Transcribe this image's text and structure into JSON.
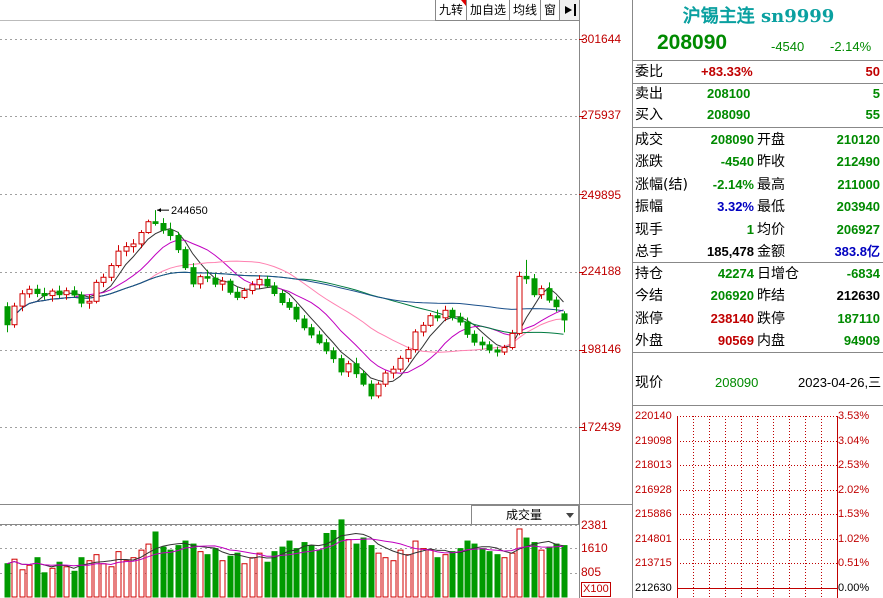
{
  "toolbar": {
    "items": [
      "九转",
      "加自选",
      "均线",
      "窗"
    ]
  },
  "price_axis": [
    "301644",
    "275937",
    "249895",
    "224188",
    "198146",
    "172439"
  ],
  "price_annotation": "244650",
  "volume": {
    "selector": "成交量",
    "axis": [
      "2381",
      "1610",
      "805"
    ],
    "unit": "X100"
  },
  "header": {
    "title": "沪锡主连 sn9999",
    "price": "208090",
    "change": "-4540",
    "change_pct": "-2.14%"
  },
  "order_book": {
    "weibi": {
      "label": "委比",
      "pct": "+83.33%",
      "diff": "50"
    },
    "sell": {
      "label": "卖出",
      "price": "208100",
      "vol": "5"
    },
    "buy": {
      "label": "买入",
      "price": "208090",
      "vol": "55"
    }
  },
  "quote": [
    {
      "l1": "成交",
      "v1": "208090",
      "c1": "green",
      "l2": "开盘",
      "v2": "210120",
      "c2": "green"
    },
    {
      "l1": "涨跌",
      "v1": "-4540",
      "c1": "green",
      "l2": "昨收",
      "v2": "212490",
      "c2": "green"
    },
    {
      "l1": "涨幅(结)",
      "v1": "-2.14%",
      "c1": "green",
      "l2": "最高",
      "v2": "211000",
      "c2": "green"
    },
    {
      "l1": "振幅",
      "v1": "3.32%",
      "c1": "blue",
      "l2": "最低",
      "v2": "203940",
      "c2": "green"
    },
    {
      "l1": "现手",
      "v1": "1",
      "c1": "green",
      "l2": "均价",
      "v2": "206927",
      "c2": "green"
    },
    {
      "l1": "总手",
      "v1": "185,478",
      "c1": "black",
      "l2": "金额",
      "v2": "383.8亿",
      "c2": "blue"
    }
  ],
  "position": [
    {
      "l1": "持仓",
      "v1": "42274",
      "c1": "green",
      "l2": "日增仓",
      "v2": "-6834",
      "c2": "green"
    },
    {
      "l1": "今结",
      "v1": "206920",
      "c1": "green",
      "l2": "昨结",
      "v2": "212630",
      "c2": "black"
    },
    {
      "l1": "涨停",
      "v1": "238140",
      "c1": "red",
      "l2": "跌停",
      "v2": "187110",
      "c2": "green"
    },
    {
      "l1": "外盘",
      "v1": "90569",
      "c1": "red",
      "l2": "内盘",
      "v2": "94909",
      "c2": "green"
    }
  ],
  "last_trade": {
    "label": "现价",
    "price": "208090",
    "datetime": "2023-04-26,三"
  },
  "mini_chart": {
    "left_labels": [
      "220140",
      "219098",
      "218013",
      "216928",
      "215886",
      "214801",
      "213715",
      "212630"
    ],
    "right_labels": [
      "3.53%",
      "3.04%",
      "2.53%",
      "2.02%",
      "1.53%",
      "1.02%",
      "0.51%",
      "0.00%"
    ]
  },
  "chart_data": {
    "type": "candlestick",
    "ohlc": [
      [
        212500,
        214000,
        204000,
        206500
      ],
      [
        206500,
        213800,
        205500,
        212700
      ],
      [
        212700,
        218000,
        211000,
        216800
      ],
      [
        216800,
        219500,
        215500,
        218300
      ],
      [
        218300,
        219800,
        215700,
        216900
      ],
      [
        216900,
        218800,
        214800,
        216200
      ],
      [
        216200,
        218500,
        214200,
        217700
      ],
      [
        217700,
        219500,
        215400,
        216500
      ],
      [
        216500,
        218900,
        214800,
        217800
      ],
      [
        217800,
        219300,
        215600,
        216400
      ],
      [
        216400,
        217500,
        212300,
        213700
      ],
      [
        213700,
        216500,
        211800,
        214300
      ],
      [
        214300,
        221500,
        213600,
        220600
      ],
      [
        220600,
        223500,
        219000,
        222300
      ],
      [
        222300,
        227000,
        221000,
        226200
      ],
      [
        226200,
        233000,
        225500,
        231000
      ],
      [
        231000,
        234000,
        229300,
        232500
      ],
      [
        232500,
        235000,
        230500,
        233400
      ],
      [
        233400,
        238000,
        232000,
        237200
      ],
      [
        237200,
        241500,
        236800,
        240800
      ],
      [
        240800,
        244650,
        239500,
        240200
      ],
      [
        240200,
        242000,
        236800,
        238000
      ],
      [
        238000,
        240500,
        234600,
        236200
      ],
      [
        236200,
        237400,
        230400,
        231500
      ],
      [
        231500,
        232500,
        224700,
        225500
      ],
      [
        225500,
        227000,
        219000,
        220100
      ],
      [
        220100,
        223200,
        218500,
        222500
      ],
      [
        222500,
        224800,
        220700,
        222000
      ],
      [
        222000,
        223500,
        219000,
        220000
      ],
      [
        220000,
        222400,
        217800,
        221000
      ],
      [
        221000,
        221800,
        216500,
        217300
      ],
      [
        217300,
        219000,
        214700,
        215600
      ],
      [
        215600,
        218800,
        215000,
        217900
      ],
      [
        217900,
        221000,
        216600,
        219800
      ],
      [
        219800,
        223000,
        218500,
        221600
      ],
      [
        221600,
        222800,
        218800,
        219400
      ],
      [
        219400,
        220700,
        216000,
        216900
      ],
      [
        216900,
        218100,
        213000,
        213900
      ],
      [
        213900,
        215300,
        211400,
        212300
      ],
      [
        212300,
        213500,
        207400,
        208400
      ],
      [
        208400,
        209700,
        204600,
        205500
      ],
      [
        205500,
        206800,
        202000,
        203100
      ],
      [
        203100,
        204500,
        199900,
        200500
      ],
      [
        200500,
        201800,
        196700,
        197800
      ],
      [
        197800,
        199000,
        193800,
        195200
      ],
      [
        195200,
        196500,
        189600,
        190800
      ],
      [
        190800,
        194500,
        189100,
        193500
      ],
      [
        193500,
        195500,
        188800,
        190200
      ],
      [
        190200,
        191400,
        186000,
        186700
      ],
      [
        186700,
        188000,
        181700,
        182800
      ],
      [
        182800,
        187600,
        182000,
        186700
      ],
      [
        186700,
        191200,
        185800,
        190400
      ],
      [
        190400,
        192800,
        188600,
        191700
      ],
      [
        191700,
        196200,
        190800,
        195300
      ],
      [
        195300,
        199200,
        194000,
        198200
      ],
      [
        198200,
        205000,
        197200,
        204100
      ],
      [
        204100,
        207400,
        202600,
        206300
      ],
      [
        206300,
        210400,
        205800,
        209500
      ],
      [
        209500,
        211500,
        207600,
        208800
      ],
      [
        208800,
        212800,
        207700,
        211300
      ],
      [
        211300,
        212200,
        207900,
        209000
      ],
      [
        209000,
        210500,
        206200,
        207400
      ],
      [
        207400,
        208900,
        202100,
        203300
      ],
      [
        203300,
        204600,
        199500,
        200700
      ],
      [
        200700,
        202500,
        198200,
        199800
      ],
      [
        199800,
        201000,
        197000,
        198100
      ],
      [
        198100,
        199200,
        195900,
        197400
      ],
      [
        197400,
        199800,
        196400,
        198900
      ],
      [
        198900,
        204800,
        198200,
        203600
      ],
      [
        203600,
        224200,
        203000,
        222600
      ],
      [
        222600,
        228100,
        220100,
        221800
      ],
      [
        221800,
        223400,
        215700,
        216500
      ],
      [
        216500,
        219600,
        215100,
        218500
      ],
      [
        218500,
        220600,
        213800,
        214700
      ],
      [
        214700,
        215900,
        210800,
        212500
      ],
      [
        210120,
        211000,
        203940,
        208090
      ]
    ],
    "volume": [
      1100,
      1250,
      900,
      1050,
      1300,
      800,
      950,
      1150,
      1000,
      850,
      1300,
      1200,
      1400,
      1100,
      1000,
      1500,
      1200,
      1300,
      1550,
      1750,
      2150,
      1650,
      1550,
      1700,
      1850,
      1750,
      1500,
      1400,
      1600,
      1200,
      1350,
      1450,
      1100,
      1300,
      1450,
      1150,
      1500,
      1650,
      1850,
      1600,
      1800,
      1700,
      1550,
      2100,
      2200,
      2550,
      1900,
      1750,
      1950,
      1700,
      1450,
      1300,
      1200,
      1550,
      1400,
      1850,
      1600,
      1550,
      1300,
      1400,
      1500,
      1600,
      1850,
      1750,
      1600,
      1500,
      1400,
      1300,
      1450,
      2250,
      1950,
      1800,
      1550,
      1650,
      1750,
      1700
    ]
  }
}
